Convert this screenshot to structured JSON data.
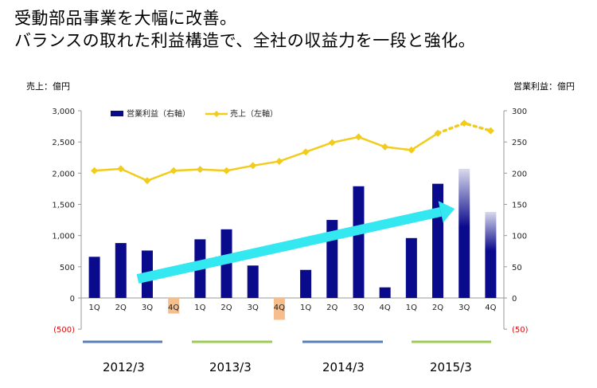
{
  "headline": {
    "line1": "受動部品事業を大幅に改善。",
    "line2": "バランスの取れた利益構造で、全社の収益力を一段と強化。"
  },
  "units": {
    "left": "売上：億円",
    "right": "営業利益：億円"
  },
  "colors": {
    "bar": "#0a0a8c",
    "bar_negative": "#f5be8c",
    "line": "#f2cc1c",
    "arrow": "#33e8f0",
    "fy_2012": "#5a7fb8",
    "fy_2013": "#9ccc55",
    "fy_2014": "#5a7fb8",
    "fy_2015": "#9ccc55"
  },
  "chart_data": {
    "type": "bar",
    "categories": [
      "1Q",
      "2Q",
      "3Q",
      "4Q",
      "1Q",
      "2Q",
      "3Q",
      "4Q",
      "1Q",
      "2Q",
      "3Q",
      "4Q",
      "1Q",
      "2Q",
      "3Q",
      "4Q"
    ],
    "fiscal_years": [
      "2012/3",
      "2013/3",
      "2014/3",
      "2015/3"
    ],
    "legend": {
      "bar": "営業利益（右軸）",
      "line": "売上（左軸）"
    },
    "series": [
      {
        "name": "営業利益（右軸）",
        "kind": "bar",
        "axis": "right",
        "values": [
          66,
          88,
          76,
          -25,
          94,
          110,
          52,
          -35,
          45,
          125,
          179,
          17,
          96,
          183,
          207,
          138
        ],
        "estimate_from_index": 14
      },
      {
        "name": "売上（左軸）",
        "kind": "line",
        "axis": "left",
        "values": [
          2040,
          2070,
          1880,
          2040,
          2060,
          2040,
          2120,
          2190,
          2340,
          2490,
          2580,
          2420,
          2370,
          2640,
          2800,
          2680
        ],
        "estimate_from_index": 13
      }
    ],
    "left_axis": {
      "ticks": [
        "3,000",
        "2,500",
        "2,000",
        "1,500",
        "1,000",
        "500",
        "0",
        "(500)"
      ],
      "ylim": [
        -500,
        3000
      ]
    },
    "right_axis": {
      "ticks": [
        "300",
        "250",
        "200",
        "150",
        "100",
        "50",
        "0",
        "(50)"
      ],
      "ylim": [
        -50,
        300
      ]
    },
    "annotation": "upward trend arrow from 3Q 2012/3 to 3Q 2015/3",
    "grid": false
  }
}
